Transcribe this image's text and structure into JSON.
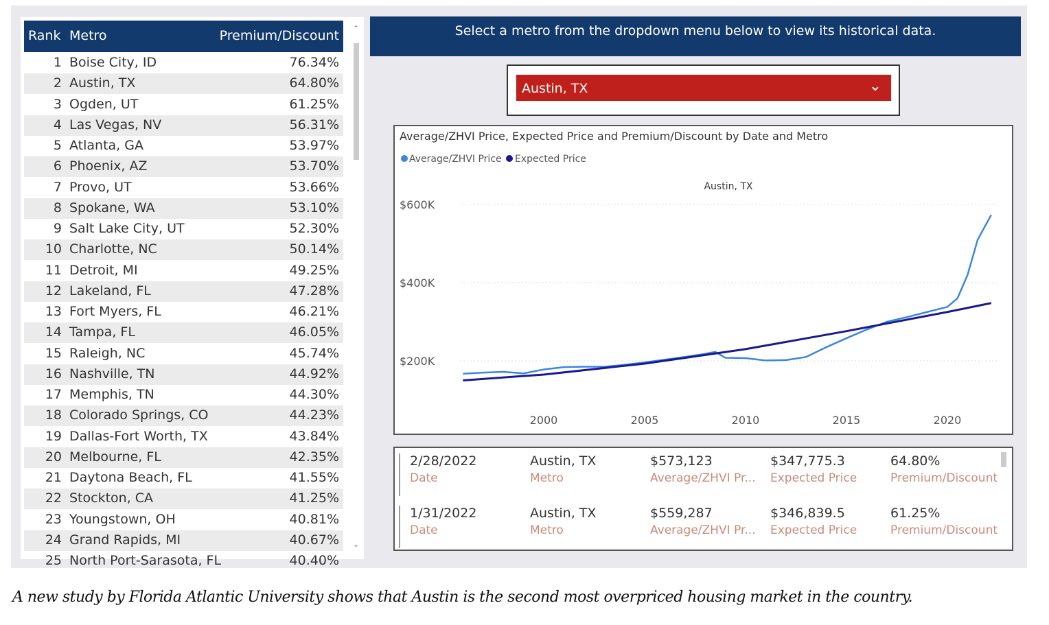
{
  "table": {
    "headers": [
      "Rank",
      "Metro",
      "Premium/Discount"
    ],
    "rows": [
      [
        "1",
        "Boise City, ID",
        "76.34%"
      ],
      [
        "2",
        "Austin, TX",
        "64.80%"
      ],
      [
        "3",
        "Ogden, UT",
        "61.25%"
      ],
      [
        "4",
        "Las Vegas, NV",
        "56.31%"
      ],
      [
        "5",
        "Atlanta, GA",
        "53.97%"
      ],
      [
        "6",
        "Phoenix, AZ",
        "53.70%"
      ],
      [
        "7",
        "Provo, UT",
        "53.66%"
      ],
      [
        "8",
        "Spokane, WA",
        "53.10%"
      ],
      [
        "9",
        "Salt Lake City, UT",
        "52.30%"
      ],
      [
        "10",
        "Charlotte, NC",
        "50.14%"
      ],
      [
        "11",
        "Detroit, MI",
        "49.25%"
      ],
      [
        "12",
        "Lakeland, FL",
        "47.28%"
      ],
      [
        "13",
        "Fort Myers, FL",
        "46.21%"
      ],
      [
        "14",
        "Tampa, FL",
        "46.05%"
      ],
      [
        "15",
        "Raleigh, NC",
        "45.74%"
      ],
      [
        "16",
        "Nashville, TN",
        "44.92%"
      ],
      [
        "17",
        "Memphis, TN",
        "44.30%"
      ],
      [
        "18",
        "Colorado Springs, CO",
        "44.23%"
      ],
      [
        "19",
        "Dallas-Fort Worth, TX",
        "43.84%"
      ],
      [
        "20",
        "Melbourne, FL",
        "42.35%"
      ],
      [
        "21",
        "Daytona Beach, FL",
        "41.55%"
      ],
      [
        "22",
        "Stockton, CA",
        "41.25%"
      ],
      [
        "23",
        "Youngstown, OH",
        "40.81%"
      ],
      [
        "24",
        "Grand Rapids, MI",
        "40.67%"
      ],
      [
        "25",
        "North Port-Sarasota, FL",
        "40.40%"
      ]
    ]
  },
  "banner": "Select a metro from the dropdown menu below to view its historical data.",
  "dropdown": {
    "selected": "Austin, TX",
    "color": "#c0201c"
  },
  "chart_data": {
    "type": "line",
    "title": "Average/ZHVI Price, Expected Price and Premium/Discount by Date and Metro",
    "subtitle": "Austin, TX",
    "yticks": [
      "$200K",
      "$400K",
      "$600K"
    ],
    "xticks": [
      "2000",
      "2005",
      "2010",
      "2015",
      "2020"
    ],
    "ylim": [
      0,
      650000
    ],
    "grid": true,
    "legend": "top-left",
    "series": [
      {
        "name": "Average/ZHVI Price",
        "color": "#3a86e0",
        "x": [
          1996,
          1997,
          1998,
          1999,
          2000,
          2001,
          2002,
          2003,
          2004,
          2005,
          2006,
          2007,
          2008,
          2008.5,
          2009,
          2010,
          2011,
          2012,
          2013,
          2014,
          2015,
          2016,
          2017,
          2018,
          2019,
          2020,
          2020.5,
          2021,
          2021.5,
          2022.17
        ],
        "y": [
          167000,
          170000,
          172000,
          168000,
          178000,
          184000,
          185000,
          185000,
          190000,
          196000,
          203000,
          210000,
          218000,
          223000,
          208000,
          207000,
          201000,
          202000,
          210000,
          235000,
          258000,
          280000,
          300000,
          312000,
          325000,
          338000,
          360000,
          420000,
          510000,
          573123
        ]
      },
      {
        "name": "Expected Price",
        "color": "#1a1a8c",
        "x": [
          1996,
          2000,
          2005,
          2010,
          2015,
          2020,
          2022.17
        ],
        "y": [
          150000,
          165000,
          193000,
          230000,
          276000,
          325000,
          347775
        ]
      }
    ]
  },
  "cards": [
    {
      "values": [
        "2/28/2022",
        "Austin, TX",
        "$573,123",
        "$347,775.3",
        "64.80%"
      ],
      "labels": [
        "Date",
        "Metro",
        "Average/ZHVI Pr...",
        "Expected Price",
        "Premium/Discount"
      ]
    },
    {
      "values": [
        "1/31/2022",
        "Austin, TX",
        "$559,287",
        "$346,839.5",
        "61.25%"
      ],
      "labels": [
        "Date",
        "Metro",
        "Average/ZHVI Pr...",
        "Expected Price",
        "Premium/Discount"
      ]
    }
  ],
  "caption": "A new study by Florida Atlantic University shows that Austin is the second most overpriced housing market in the country."
}
